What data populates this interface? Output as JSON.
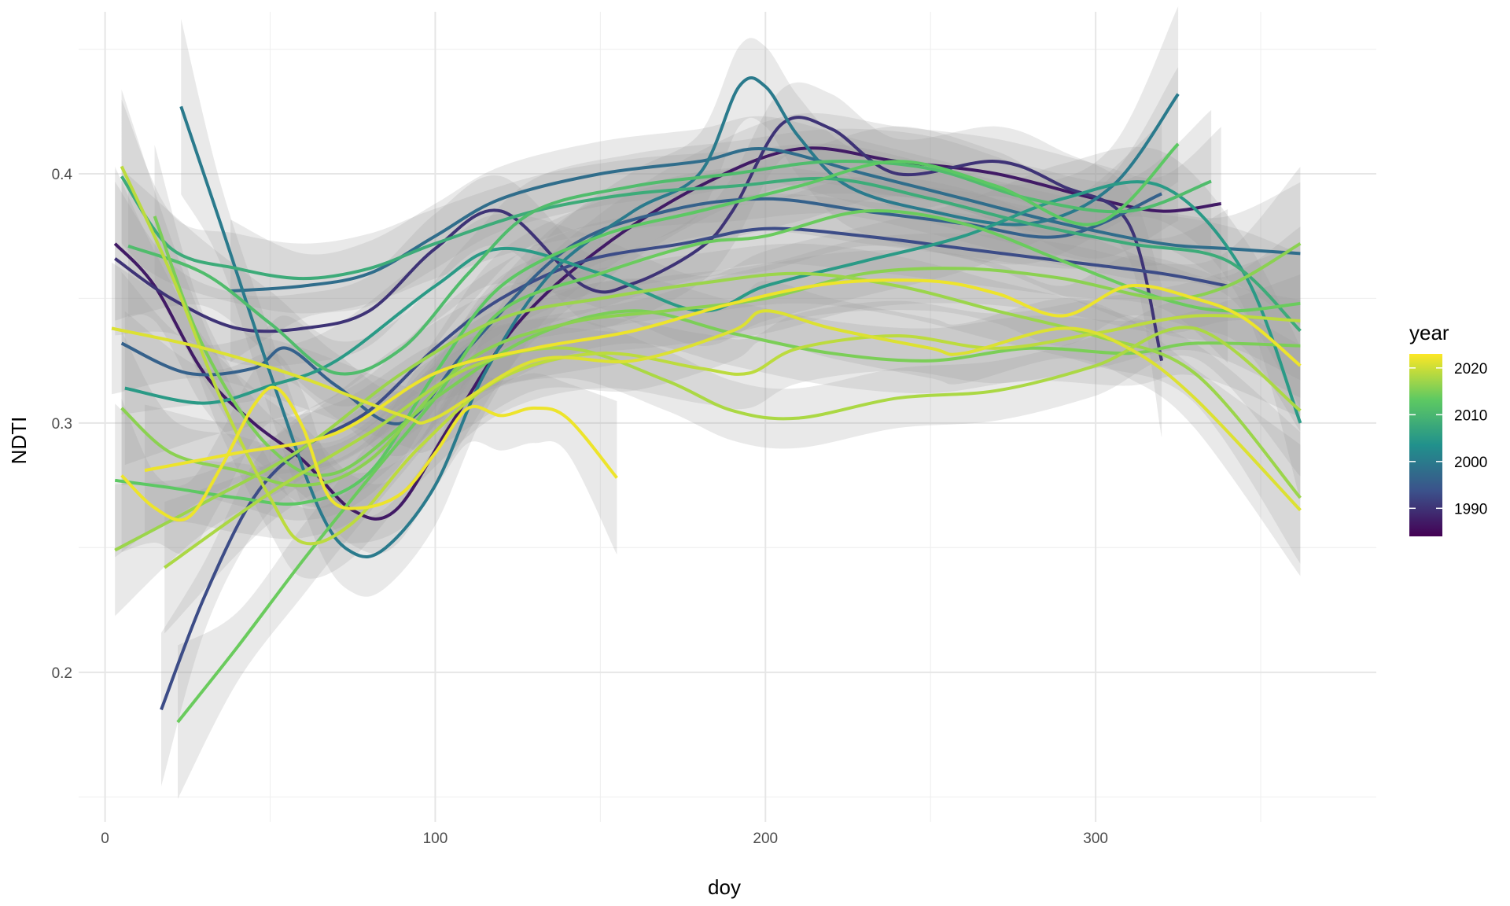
{
  "chart_data": {
    "type": "line",
    "title": "",
    "xlabel": "doy",
    "ylabel": "NDTI",
    "xlim": [
      -8,
      385
    ],
    "ylim": [
      0.14,
      0.465
    ],
    "x_ticks": [
      0,
      100,
      200,
      300
    ],
    "x_tick_labels": [
      "0",
      "100",
      "200",
      "300"
    ],
    "x_minor_ticks": [
      50,
      150,
      250,
      350
    ],
    "y_ticks": [
      0.2,
      0.3,
      0.4
    ],
    "y_tick_labels": [
      "0.2",
      "0.3",
      "0.4"
    ],
    "y_minor_ticks": [
      0.15,
      0.25,
      0.35,
      0.45
    ],
    "grid": true,
    "confidence_band_color": "#999999",
    "legend": {
      "title": "year",
      "position": "right",
      "type": "colorbar",
      "palette": "viridis",
      "range": [
        1984,
        2023
      ],
      "ticks": [
        1990,
        2000,
        2010,
        2020
      ],
      "tick_labels": [
        "1990",
        "2000",
        "2010",
        "2020"
      ]
    },
    "series": [
      {
        "year": 2022,
        "band": 0.014,
        "points": [
          [
            5,
            0.279
          ],
          [
            15,
            0.266
          ],
          [
            25,
            0.262
          ],
          [
            35,
            0.282
          ],
          [
            45,
            0.307
          ],
          [
            52,
            0.314
          ],
          [
            60,
            0.298
          ],
          [
            68,
            0.27
          ],
          [
            78,
            0.266
          ],
          [
            90,
            0.272
          ],
          [
            100,
            0.288
          ],
          [
            110,
            0.306
          ],
          [
            120,
            0.303
          ],
          [
            130,
            0.306
          ],
          [
            140,
            0.302
          ],
          [
            155,
            0.278
          ]
        ]
      },
      {
        "year": 2022,
        "band": 0.012,
        "points": [
          [
            12,
            0.281
          ],
          [
            40,
            0.288
          ],
          [
            70,
            0.296
          ],
          [
            100,
            0.32
          ],
          [
            130,
            0.33
          ],
          [
            160,
            0.337
          ],
          [
            190,
            0.348
          ],
          [
            220,
            0.356
          ],
          [
            250,
            0.357
          ],
          [
            270,
            0.352
          ],
          [
            290,
            0.343
          ],
          [
            310,
            0.355
          ],
          [
            330,
            0.35
          ],
          [
            345,
            0.342
          ],
          [
            362,
            0.323
          ]
        ]
      },
      {
        "year": 2021,
        "band": 0.012,
        "points": [
          [
            2,
            0.338
          ],
          [
            30,
            0.33
          ],
          [
            60,
            0.318
          ],
          [
            90,
            0.303
          ],
          [
            100,
            0.302
          ],
          [
            130,
            0.325
          ],
          [
            160,
            0.325
          ],
          [
            190,
            0.337
          ],
          [
            200,
            0.345
          ],
          [
            220,
            0.338
          ],
          [
            250,
            0.33
          ],
          [
            260,
            0.328
          ],
          [
            290,
            0.338
          ],
          [
            310,
            0.33
          ],
          [
            330,
            0.31
          ],
          [
            362,
            0.265
          ]
        ]
      },
      {
        "year": 2019,
        "band": 0.014,
        "points": [
          [
            5,
            0.403
          ],
          [
            20,
            0.36
          ],
          [
            35,
            0.31
          ],
          [
            50,
            0.27
          ],
          [
            60,
            0.252
          ],
          [
            75,
            0.26
          ],
          [
            95,
            0.29
          ],
          [
            120,
            0.318
          ],
          [
            150,
            0.328
          ],
          [
            180,
            0.322
          ],
          [
            195,
            0.32
          ],
          [
            210,
            0.33
          ],
          [
            240,
            0.335
          ],
          [
            270,
            0.33
          ],
          [
            300,
            0.336
          ],
          [
            330,
            0.343
          ],
          [
            362,
            0.341
          ]
        ]
      },
      {
        "year": 2018,
        "band": 0.012,
        "points": [
          [
            18,
            0.242
          ],
          [
            50,
            0.272
          ],
          [
            80,
            0.296
          ],
          [
            110,
            0.322
          ],
          [
            140,
            0.33
          ],
          [
            170,
            0.317
          ],
          [
            190,
            0.305
          ],
          [
            210,
            0.302
          ],
          [
            240,
            0.31
          ],
          [
            270,
            0.313
          ],
          [
            300,
            0.323
          ],
          [
            330,
            0.338
          ],
          [
            362,
            0.305
          ]
        ]
      },
      {
        "year": 2017,
        "band": 0.012,
        "points": [
          [
            3,
            0.249
          ],
          [
            30,
            0.268
          ],
          [
            60,
            0.29
          ],
          [
            90,
            0.32
          ],
          [
            120,
            0.342
          ],
          [
            150,
            0.35
          ],
          [
            180,
            0.356
          ],
          [
            210,
            0.36
          ],
          [
            240,
            0.355
          ],
          [
            270,
            0.345
          ],
          [
            300,
            0.335
          ],
          [
            330,
            0.32
          ],
          [
            362,
            0.27
          ]
        ]
      },
      {
        "year": 2016,
        "band": 0.014,
        "points": [
          [
            5,
            0.306
          ],
          [
            20,
            0.288
          ],
          [
            40,
            0.281
          ],
          [
            60,
            0.275
          ],
          [
            80,
            0.285
          ],
          [
            110,
            0.325
          ],
          [
            140,
            0.34
          ],
          [
            170,
            0.345
          ],
          [
            200,
            0.35
          ],
          [
            230,
            0.36
          ],
          [
            260,
            0.362
          ],
          [
            290,
            0.358
          ],
          [
            320,
            0.35
          ],
          [
            340,
            0.355
          ],
          [
            362,
            0.372
          ]
        ]
      },
      {
        "year": 2015,
        "band": 0.013,
        "points": [
          [
            15,
            0.383
          ],
          [
            30,
            0.33
          ],
          [
            50,
            0.29
          ],
          [
            70,
            0.28
          ],
          [
            100,
            0.31
          ],
          [
            130,
            0.335
          ],
          [
            160,
            0.345
          ],
          [
            190,
            0.336
          ],
          [
            220,
            0.328
          ],
          [
            250,
            0.325
          ],
          [
            280,
            0.33
          ],
          [
            310,
            0.328
          ],
          [
            330,
            0.332
          ],
          [
            362,
            0.331
          ]
        ]
      },
      {
        "year": 2014,
        "band": 0.014,
        "points": [
          [
            22,
            0.18
          ],
          [
            40,
            0.21
          ],
          [
            60,
            0.245
          ],
          [
            80,
            0.278
          ],
          [
            100,
            0.31
          ],
          [
            120,
            0.345
          ],
          [
            150,
            0.36
          ],
          [
            180,
            0.372
          ],
          [
            200,
            0.375
          ],
          [
            230,
            0.385
          ],
          [
            260,
            0.38
          ],
          [
            290,
            0.365
          ],
          [
            320,
            0.35
          ],
          [
            340,
            0.345
          ],
          [
            362,
            0.348
          ]
        ]
      },
      {
        "year": 2013,
        "band": 0.014,
        "points": [
          [
            3,
            0.277
          ],
          [
            20,
            0.274
          ],
          [
            40,
            0.27
          ],
          [
            60,
            0.268
          ],
          [
            80,
            0.28
          ],
          [
            100,
            0.32
          ],
          [
            120,
            0.355
          ],
          [
            150,
            0.375
          ],
          [
            180,
            0.385
          ],
          [
            210,
            0.395
          ],
          [
            240,
            0.405
          ],
          [
            270,
            0.395
          ],
          [
            300,
            0.38
          ],
          [
            325,
            0.412
          ]
        ]
      },
      {
        "year": 2011,
        "band": 0.013,
        "points": [
          [
            7,
            0.371
          ],
          [
            30,
            0.36
          ],
          [
            50,
            0.34
          ],
          [
            70,
            0.32
          ],
          [
            90,
            0.33
          ],
          [
            110,
            0.36
          ],
          [
            130,
            0.385
          ],
          [
            160,
            0.395
          ],
          [
            190,
            0.4
          ],
          [
            220,
            0.405
          ],
          [
            250,
            0.402
          ],
          [
            280,
            0.39
          ],
          [
            310,
            0.385
          ],
          [
            335,
            0.397
          ]
        ]
      },
      {
        "year": 2008,
        "band": 0.014,
        "points": [
          [
            5,
            0.399
          ],
          [
            20,
            0.37
          ],
          [
            40,
            0.362
          ],
          [
            60,
            0.358
          ],
          [
            80,
            0.362
          ],
          [
            100,
            0.372
          ],
          [
            130,
            0.385
          ],
          [
            160,
            0.392
          ],
          [
            190,
            0.395
          ],
          [
            220,
            0.398
          ],
          [
            250,
            0.39
          ],
          [
            280,
            0.38
          ],
          [
            310,
            0.372
          ],
          [
            340,
            0.365
          ],
          [
            362,
            0.337
          ]
        ]
      },
      {
        "year": 2005,
        "band": 0.014,
        "points": [
          [
            6,
            0.314
          ],
          [
            30,
            0.308
          ],
          [
            50,
            0.315
          ],
          [
            70,
            0.325
          ],
          [
            100,
            0.355
          ],
          [
            120,
            0.37
          ],
          [
            150,
            0.36
          ],
          [
            180,
            0.345
          ],
          [
            200,
            0.355
          ],
          [
            230,
            0.365
          ],
          [
            260,
            0.375
          ],
          [
            290,
            0.39
          ],
          [
            320,
            0.395
          ],
          [
            345,
            0.36
          ],
          [
            362,
            0.3
          ]
        ]
      },
      {
        "year": 2000,
        "band": 0.016,
        "points": [
          [
            23,
            0.427
          ],
          [
            35,
            0.38
          ],
          [
            50,
            0.32
          ],
          [
            65,
            0.265
          ],
          [
            75,
            0.248
          ],
          [
            85,
            0.25
          ],
          [
            100,
            0.275
          ],
          [
            115,
            0.32
          ],
          [
            135,
            0.36
          ],
          [
            160,
            0.385
          ],
          [
            180,
            0.4
          ],
          [
            192,
            0.435
          ],
          [
            200,
            0.435
          ],
          [
            210,
            0.415
          ],
          [
            225,
            0.395
          ],
          [
            250,
            0.385
          ],
          [
            280,
            0.38
          ],
          [
            305,
            0.395
          ],
          [
            325,
            0.432
          ]
        ]
      },
      {
        "year": 1998,
        "band": 0.013,
        "points": [
          [
            38,
            0.353
          ],
          [
            60,
            0.355
          ],
          [
            80,
            0.36
          ],
          [
            100,
            0.375
          ],
          [
            120,
            0.39
          ],
          [
            150,
            0.4
          ],
          [
            180,
            0.405
          ],
          [
            200,
            0.41
          ],
          [
            230,
            0.4
          ],
          [
            260,
            0.39
          ],
          [
            290,
            0.38
          ],
          [
            320,
            0.372
          ],
          [
            340,
            0.37
          ],
          [
            362,
            0.368
          ]
        ]
      },
      {
        "year": 1996,
        "band": 0.013,
        "points": [
          [
            5,
            0.332
          ],
          [
            25,
            0.32
          ],
          [
            45,
            0.322
          ],
          [
            55,
            0.33
          ],
          [
            70,
            0.315
          ],
          [
            90,
            0.3
          ],
          [
            110,
            0.33
          ],
          [
            140,
            0.37
          ],
          [
            170,
            0.385
          ],
          [
            200,
            0.39
          ],
          [
            230,
            0.385
          ],
          [
            260,
            0.38
          ],
          [
            290,
            0.375
          ],
          [
            320,
            0.392
          ]
        ]
      },
      {
        "year": 1993,
        "band": 0.014,
        "points": [
          [
            17,
            0.185
          ],
          [
            30,
            0.23
          ],
          [
            45,
            0.27
          ],
          [
            60,
            0.29
          ],
          [
            80,
            0.305
          ],
          [
            100,
            0.33
          ],
          [
            120,
            0.35
          ],
          [
            145,
            0.365
          ],
          [
            175,
            0.372
          ],
          [
            200,
            0.378
          ],
          [
            230,
            0.375
          ],
          [
            260,
            0.37
          ],
          [
            290,
            0.365
          ],
          [
            320,
            0.36
          ],
          [
            340,
            0.355
          ]
        ]
      },
      {
        "year": 1990,
        "band": 0.014,
        "points": [
          [
            3,
            0.366
          ],
          [
            20,
            0.35
          ],
          [
            40,
            0.338
          ],
          [
            60,
            0.338
          ],
          [
            80,
            0.345
          ],
          [
            100,
            0.37
          ],
          [
            120,
            0.385
          ],
          [
            145,
            0.355
          ],
          [
            160,
            0.356
          ],
          [
            180,
            0.37
          ],
          [
            190,
            0.385
          ],
          [
            205,
            0.42
          ],
          [
            220,
            0.418
          ],
          [
            240,
            0.4
          ],
          [
            270,
            0.405
          ],
          [
            290,
            0.395
          ],
          [
            310,
            0.38
          ],
          [
            320,
            0.325
          ]
        ]
      },
      {
        "year": 1987,
        "band": 0.014,
        "points": [
          [
            3,
            0.372
          ],
          [
            15,
            0.355
          ],
          [
            30,
            0.32
          ],
          [
            45,
            0.3
          ],
          [
            60,
            0.285
          ],
          [
            75,
            0.265
          ],
          [
            88,
            0.265
          ],
          [
            105,
            0.3
          ],
          [
            125,
            0.34
          ],
          [
            150,
            0.37
          ],
          [
            180,
            0.395
          ],
          [
            210,
            0.41
          ],
          [
            240,
            0.405
          ],
          [
            270,
            0.4
          ],
          [
            300,
            0.39
          ],
          [
            320,
            0.385
          ],
          [
            338,
            0.388
          ]
        ]
      }
    ]
  }
}
